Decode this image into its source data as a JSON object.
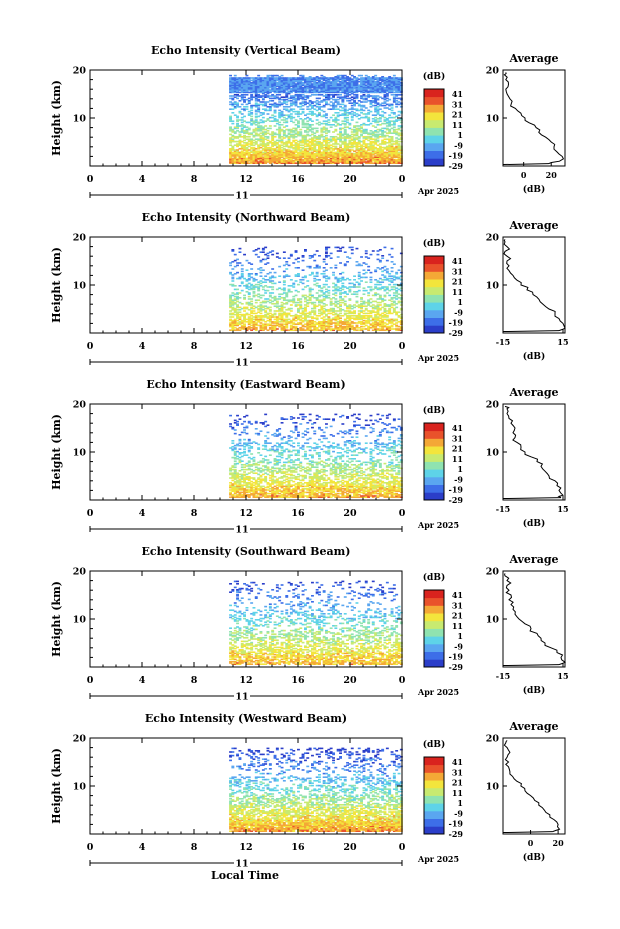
{
  "chart_data": {
    "type": "heatmap",
    "colorbar": {
      "unit": "(dB)",
      "ticks": [
        "41",
        "31",
        "21",
        "11",
        "1",
        "-9",
        "-19",
        "-29"
      ],
      "range": [
        -29,
        46
      ],
      "colors": [
        "#2b3ec9",
        "#3d6ee8",
        "#5aa6f0",
        "#5ed3e8",
        "#8fe3b0",
        "#c8ea70",
        "#f3e53c",
        "#f4a836",
        "#e9522b",
        "#d9231e"
      ]
    },
    "x_ticks": [
      "0",
      "4",
      "8",
      "12",
      "16",
      "20",
      "0"
    ],
    "x_range": [
      0,
      24
    ],
    "date_tick": "11",
    "date_label": "Apr 2025",
    "y_ticks": [
      "20",
      "10"
    ],
    "y_range": [
      0,
      20
    ],
    "ylabel": "Height (km)",
    "xlabel": "Local Time",
    "panels": [
      {
        "title": "Echo Intensity (Vertical Beam)",
        "avg_title": "Average",
        "avg_xlabel": "(dB)",
        "avg_xticks": [
          "0",
          "20"
        ],
        "avg_xrange": [
          -15,
          30
        ],
        "avg_profile": {
          "heights": [
            0.5,
            1,
            2,
            3,
            4,
            5,
            6,
            7,
            8,
            9,
            10,
            11,
            12,
            13,
            14,
            15,
            16,
            17,
            18,
            19,
            19.5
          ],
          "values": [
            18,
            26,
            28,
            24,
            22,
            20,
            16,
            11,
            9,
            4,
            1,
            -2,
            -6,
            -9,
            -10,
            -12,
            -13,
            -11,
            -13,
            -14,
            -13
          ]
        },
        "data_start_hour": 10.7,
        "heatmap_top_km": 19,
        "intensity_scale": 1.0
      },
      {
        "title": "Echo Intensity (Northward Beam)",
        "avg_title": "Average",
        "avg_xlabel": "(dB)",
        "avg_xticks": [
          "-15",
          "15"
        ],
        "avg_xrange": [
          -15,
          16
        ],
        "avg_profile": {
          "heights": [
            0.5,
            1,
            2,
            3,
            4,
            5,
            6,
            7,
            8,
            9,
            10,
            11,
            12,
            13,
            14,
            15,
            16,
            17,
            18,
            19,
            19.5
          ],
          "values": [
            13,
            16,
            15,
            13,
            11,
            8,
            5,
            3,
            0,
            -3,
            -6,
            -8,
            -10,
            -12,
            -12,
            -13,
            -13,
            -14,
            -13,
            -14,
            -14
          ]
        },
        "data_start_hour": 10.7,
        "heatmap_top_km": 18,
        "intensity_scale": 0.75
      },
      {
        "title": "Echo Intensity (Eastward Beam)",
        "avg_title": "Average",
        "avg_xlabel": "(dB)",
        "avg_xticks": [
          "-15",
          "15"
        ],
        "avg_xrange": [
          -15,
          16
        ],
        "avg_profile": {
          "heights": [
            0.5,
            1,
            2,
            3,
            4,
            5,
            6,
            7,
            8,
            9,
            10,
            11,
            12,
            13,
            14,
            15,
            16,
            17,
            18,
            19,
            19.5
          ],
          "values": [
            14,
            15,
            13,
            12,
            11,
            8,
            6,
            4,
            2,
            -1,
            -4,
            -6,
            -8,
            -9,
            -10,
            -9,
            -11,
            -12,
            -13,
            -13,
            -14
          ]
        },
        "data_start_hour": 10.7,
        "heatmap_top_km": 18,
        "intensity_scale": 0.8
      },
      {
        "title": "Echo Intensity (Southward Beam)",
        "avg_title": "Average",
        "avg_xlabel": "(dB)",
        "avg_xticks": [
          "-15",
          "15"
        ],
        "avg_xrange": [
          -15,
          16
        ],
        "avg_profile": {
          "heights": [
            0.5,
            1,
            2,
            3,
            4,
            5,
            6,
            7,
            8,
            9,
            10,
            11,
            12,
            13,
            14,
            15,
            16,
            17,
            18,
            19,
            19.5
          ],
          "values": [
            13,
            16,
            14,
            12,
            9,
            6,
            4,
            2,
            -1,
            -4,
            -7,
            -9,
            -10,
            -11,
            -12,
            -11,
            -12,
            -13,
            -13,
            -14,
            -14
          ]
        },
        "data_start_hour": 10.7,
        "heatmap_top_km": 18,
        "intensity_scale": 0.72
      },
      {
        "title": "Echo Intensity (Westward Beam)",
        "avg_title": "Average",
        "avg_xlabel": "(dB)",
        "avg_xticks": [
          "0",
          "20"
        ],
        "avg_xrange": [
          -20,
          25
        ],
        "avg_profile": {
          "heights": [
            0.5,
            1,
            2,
            3,
            4,
            5,
            6,
            7,
            8,
            9,
            10,
            11,
            12,
            13,
            14,
            15,
            16,
            17,
            18,
            19,
            19.5
          ],
          "values": [
            16,
            21,
            20,
            17,
            14,
            10,
            6,
            3,
            0,
            -4,
            -7,
            -10,
            -13,
            -15,
            -16,
            -16,
            -17,
            -15,
            -17,
            -18,
            -17
          ]
        },
        "data_start_hour": 10.7,
        "heatmap_top_km": 18,
        "intensity_scale": 0.95
      }
    ]
  }
}
